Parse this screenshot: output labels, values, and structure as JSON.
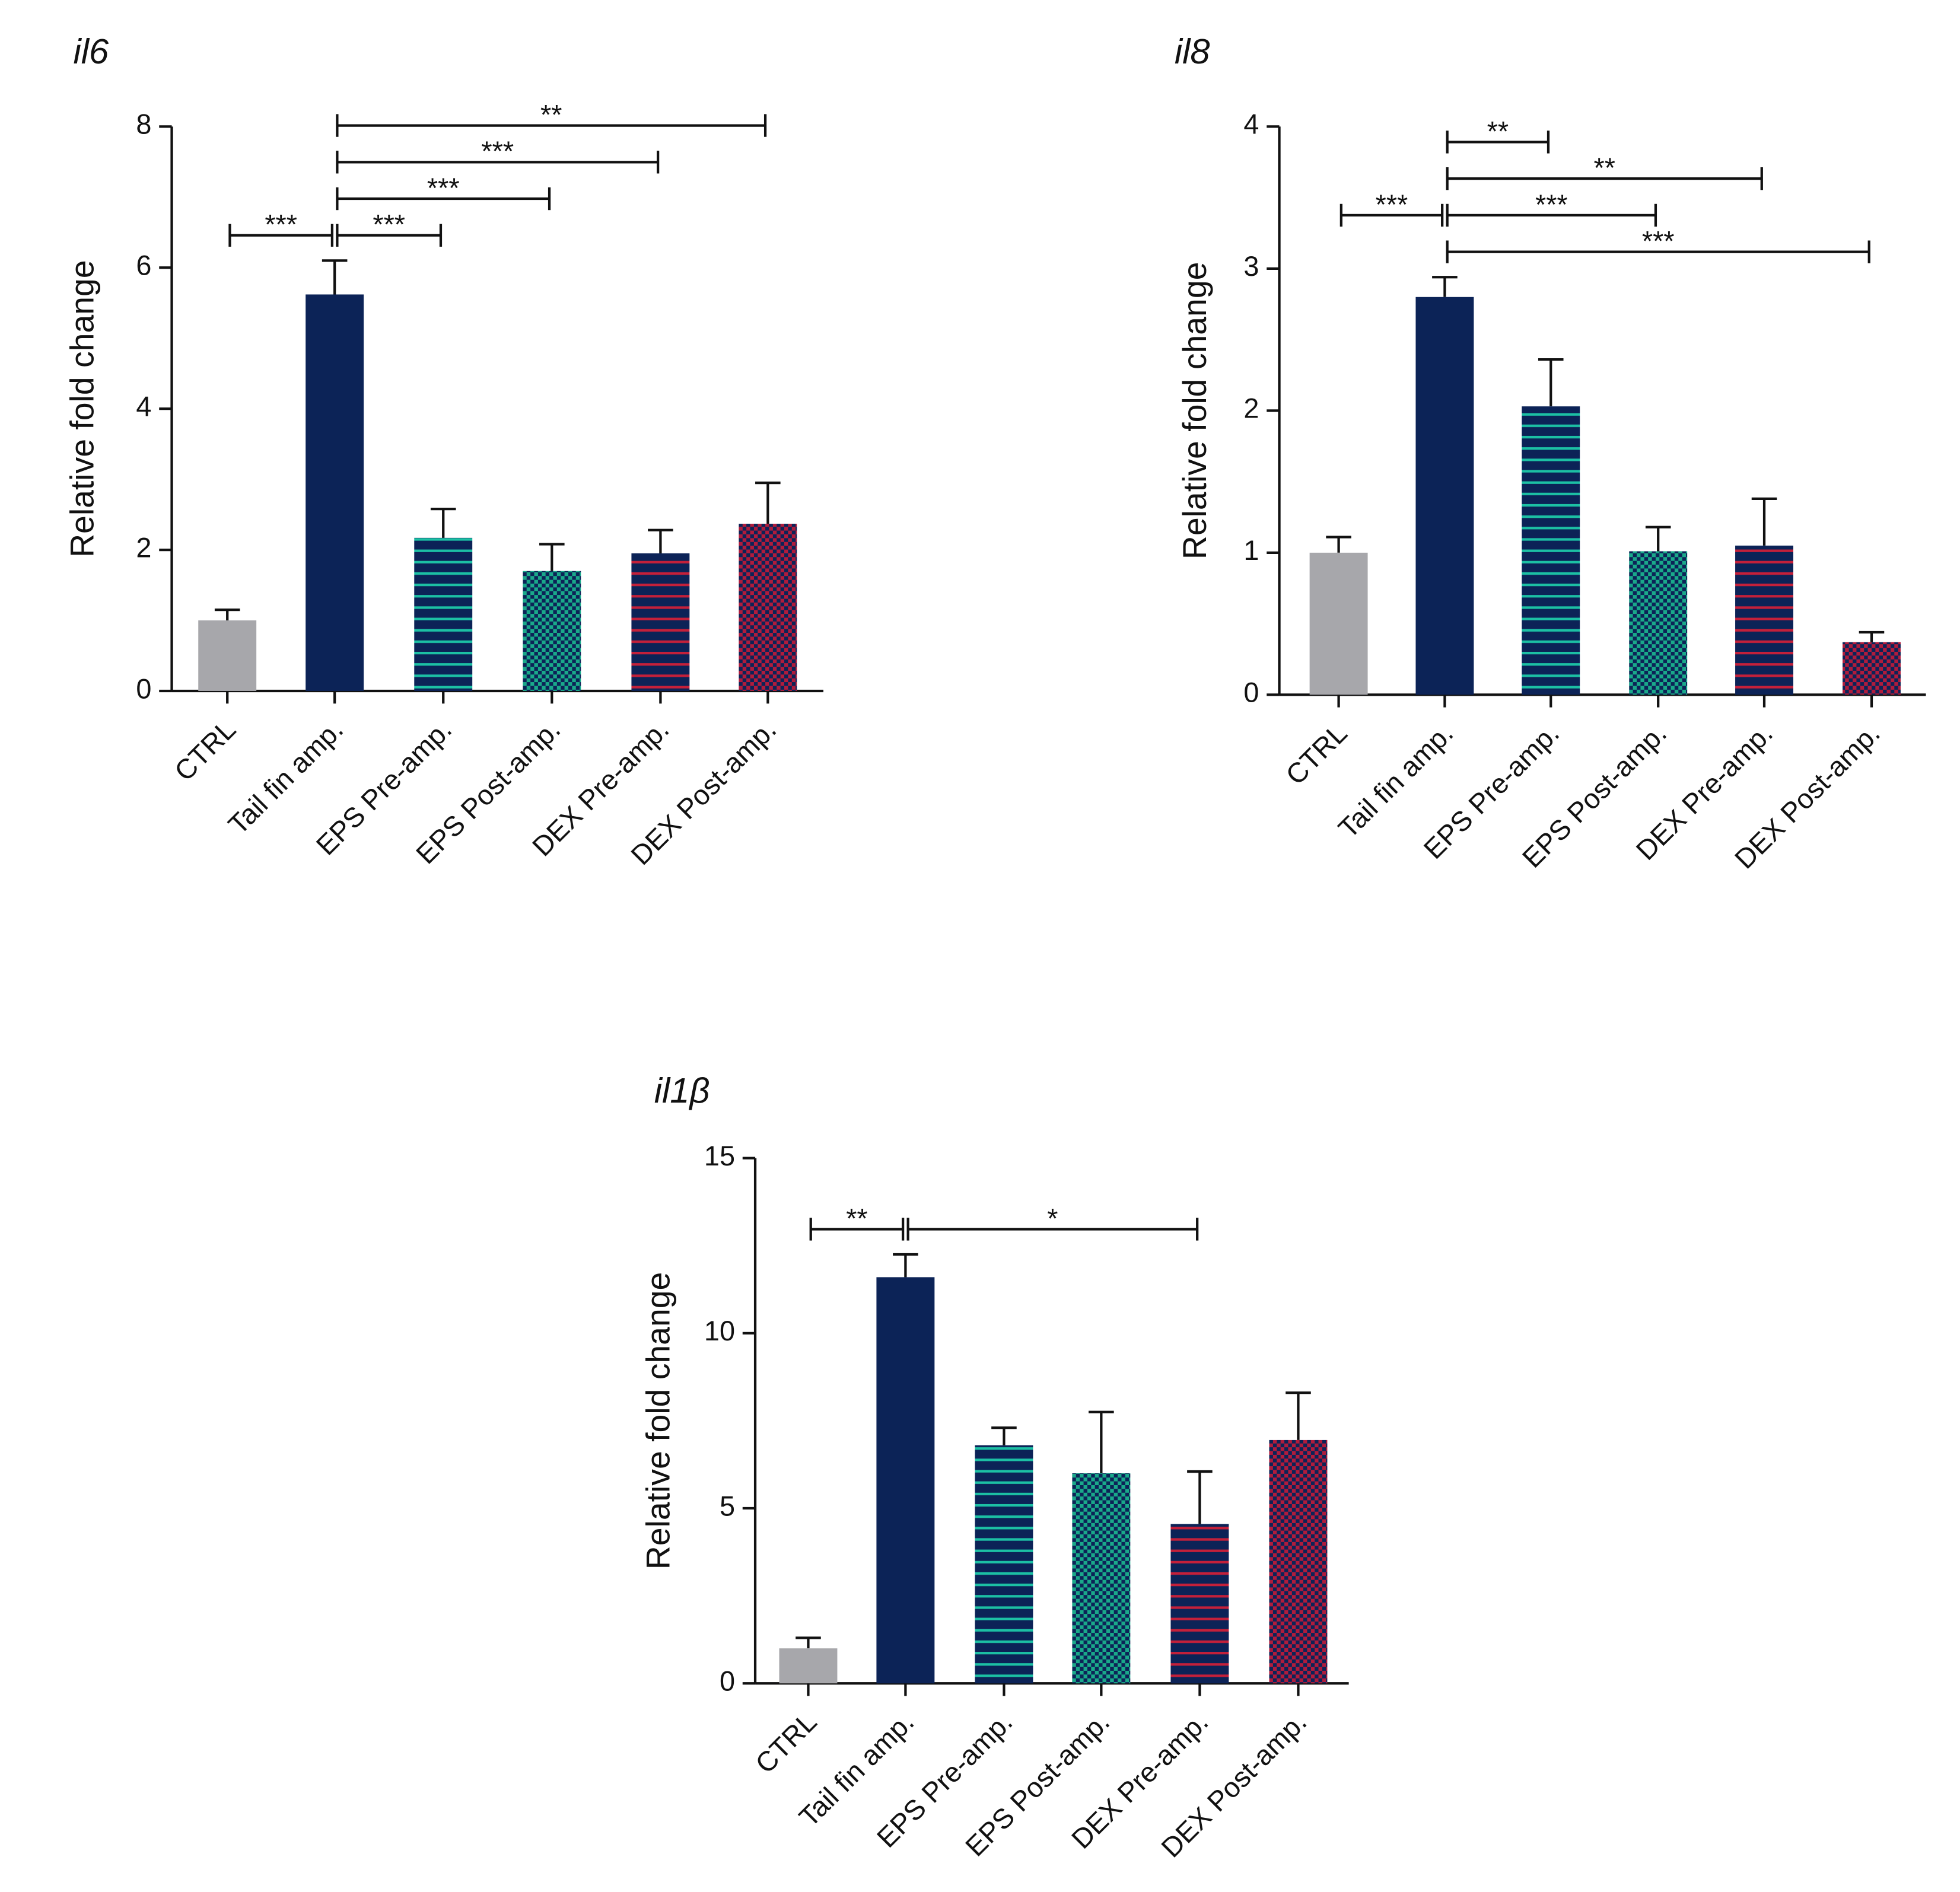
{
  "chart_data": [
    {
      "type": "bar",
      "title": "il6",
      "y_label": "Relative fold change",
      "categories": [
        "CTRL",
        "Tail fin amp.",
        "EPS Pre-amp.",
        "EPS Post-amp.",
        "DEX Pre-amp.",
        "DEX Post-amp."
      ],
      "values": [
        1.0,
        5.62,
        2.17,
        1.7,
        1.95,
        2.37
      ],
      "errors": [
        0.15,
        0.48,
        0.41,
        0.38,
        0.33,
        0.58
      ],
      "colors": [
        "#a7a7ab",
        "#0c2357",
        "#1cc0a4",
        "#1aa98a",
        "#c4203a",
        "#b01c3c"
      ],
      "patterns": [
        "solid",
        "solid",
        "hstripe",
        "check",
        "hstripe",
        "check"
      ],
      "pattern_background": "#0c2357",
      "ylim": [
        0,
        8
      ],
      "yticks": [
        0,
        2,
        4,
        6,
        8
      ],
      "significance": [
        {
          "between": [
            "CTRL",
            "Tail fin amp."
          ],
          "label": "***"
        },
        {
          "between": [
            "Tail fin amp.",
            "EPS Pre-amp."
          ],
          "label": "***"
        },
        {
          "between": [
            "Tail fin amp.",
            "EPS Post-amp."
          ],
          "label": "***"
        },
        {
          "between": [
            "Tail fin amp.",
            "DEX Pre-amp."
          ],
          "label": "***"
        },
        {
          "between": [
            "Tail fin amp.",
            "DEX Post-amp."
          ],
          "label": "**"
        }
      ]
    },
    {
      "type": "bar",
      "title": "il8",
      "y_label": "Relative fold change",
      "categories": [
        "CTRL",
        "Tail fin amp.",
        "EPS Pre-amp.",
        "EPS Post-amp.",
        "DEX Pre-amp.",
        "DEX Post-amp."
      ],
      "values": [
        1.0,
        2.8,
        2.03,
        1.01,
        1.05,
        0.37
      ],
      "errors": [
        0.11,
        0.14,
        0.33,
        0.17,
        0.33,
        0.07
      ],
      "colors": [
        "#a7a7ab",
        "#0c2357",
        "#1cc0a4",
        "#1aa98a",
        "#c4203a",
        "#b01c3c"
      ],
      "patterns": [
        "solid",
        "solid",
        "hstripe",
        "check",
        "hstripe",
        "check"
      ],
      "pattern_background": "#0c2357",
      "ylim": [
        0,
        4
      ],
      "yticks": [
        0,
        1,
        2,
        3,
        4
      ],
      "significance": [
        {
          "between": [
            "Tail fin amp.",
            "DEX Post-amp."
          ],
          "label": "***"
        },
        {
          "between": [
            "CTRL",
            "Tail fin amp."
          ],
          "label": "***"
        },
        {
          "between": [
            "Tail fin amp.",
            "EPS Post-amp."
          ],
          "label": "***"
        },
        {
          "between": [
            "Tail fin amp.",
            "DEX Pre-amp."
          ],
          "label": "**"
        },
        {
          "between": [
            "Tail fin amp.",
            "EPS Pre-amp."
          ],
          "label": "**"
        }
      ]
    },
    {
      "type": "bar",
      "title": "il1β",
      "y_label": "Relative fold change",
      "categories": [
        "CTRL",
        "Tail fin amp.",
        "EPS Pre-amp.",
        "EPS Post-amp.",
        "DEX Pre-amp.",
        "DEX Post-amp."
      ],
      "values": [
        1.0,
        11.6,
        6.8,
        6.0,
        4.55,
        6.95
      ],
      "errors": [
        0.3,
        0.65,
        0.5,
        1.75,
        1.5,
        1.35
      ],
      "colors": [
        "#a7a7ab",
        "#0c2357",
        "#1cc0a4",
        "#1aa98a",
        "#c4203a",
        "#b01c3c"
      ],
      "patterns": [
        "solid",
        "solid",
        "hstripe",
        "check",
        "hstripe",
        "check"
      ],
      "pattern_background": "#0c2357",
      "ylim": [
        0,
        15
      ],
      "yticks": [
        0,
        5,
        10,
        15
      ],
      "significance": [
        {
          "between": [
            "CTRL",
            "Tail fin amp."
          ],
          "label": "**"
        },
        {
          "between": [
            "Tail fin amp.",
            "DEX Pre-amp."
          ],
          "label": "*"
        }
      ]
    }
  ]
}
